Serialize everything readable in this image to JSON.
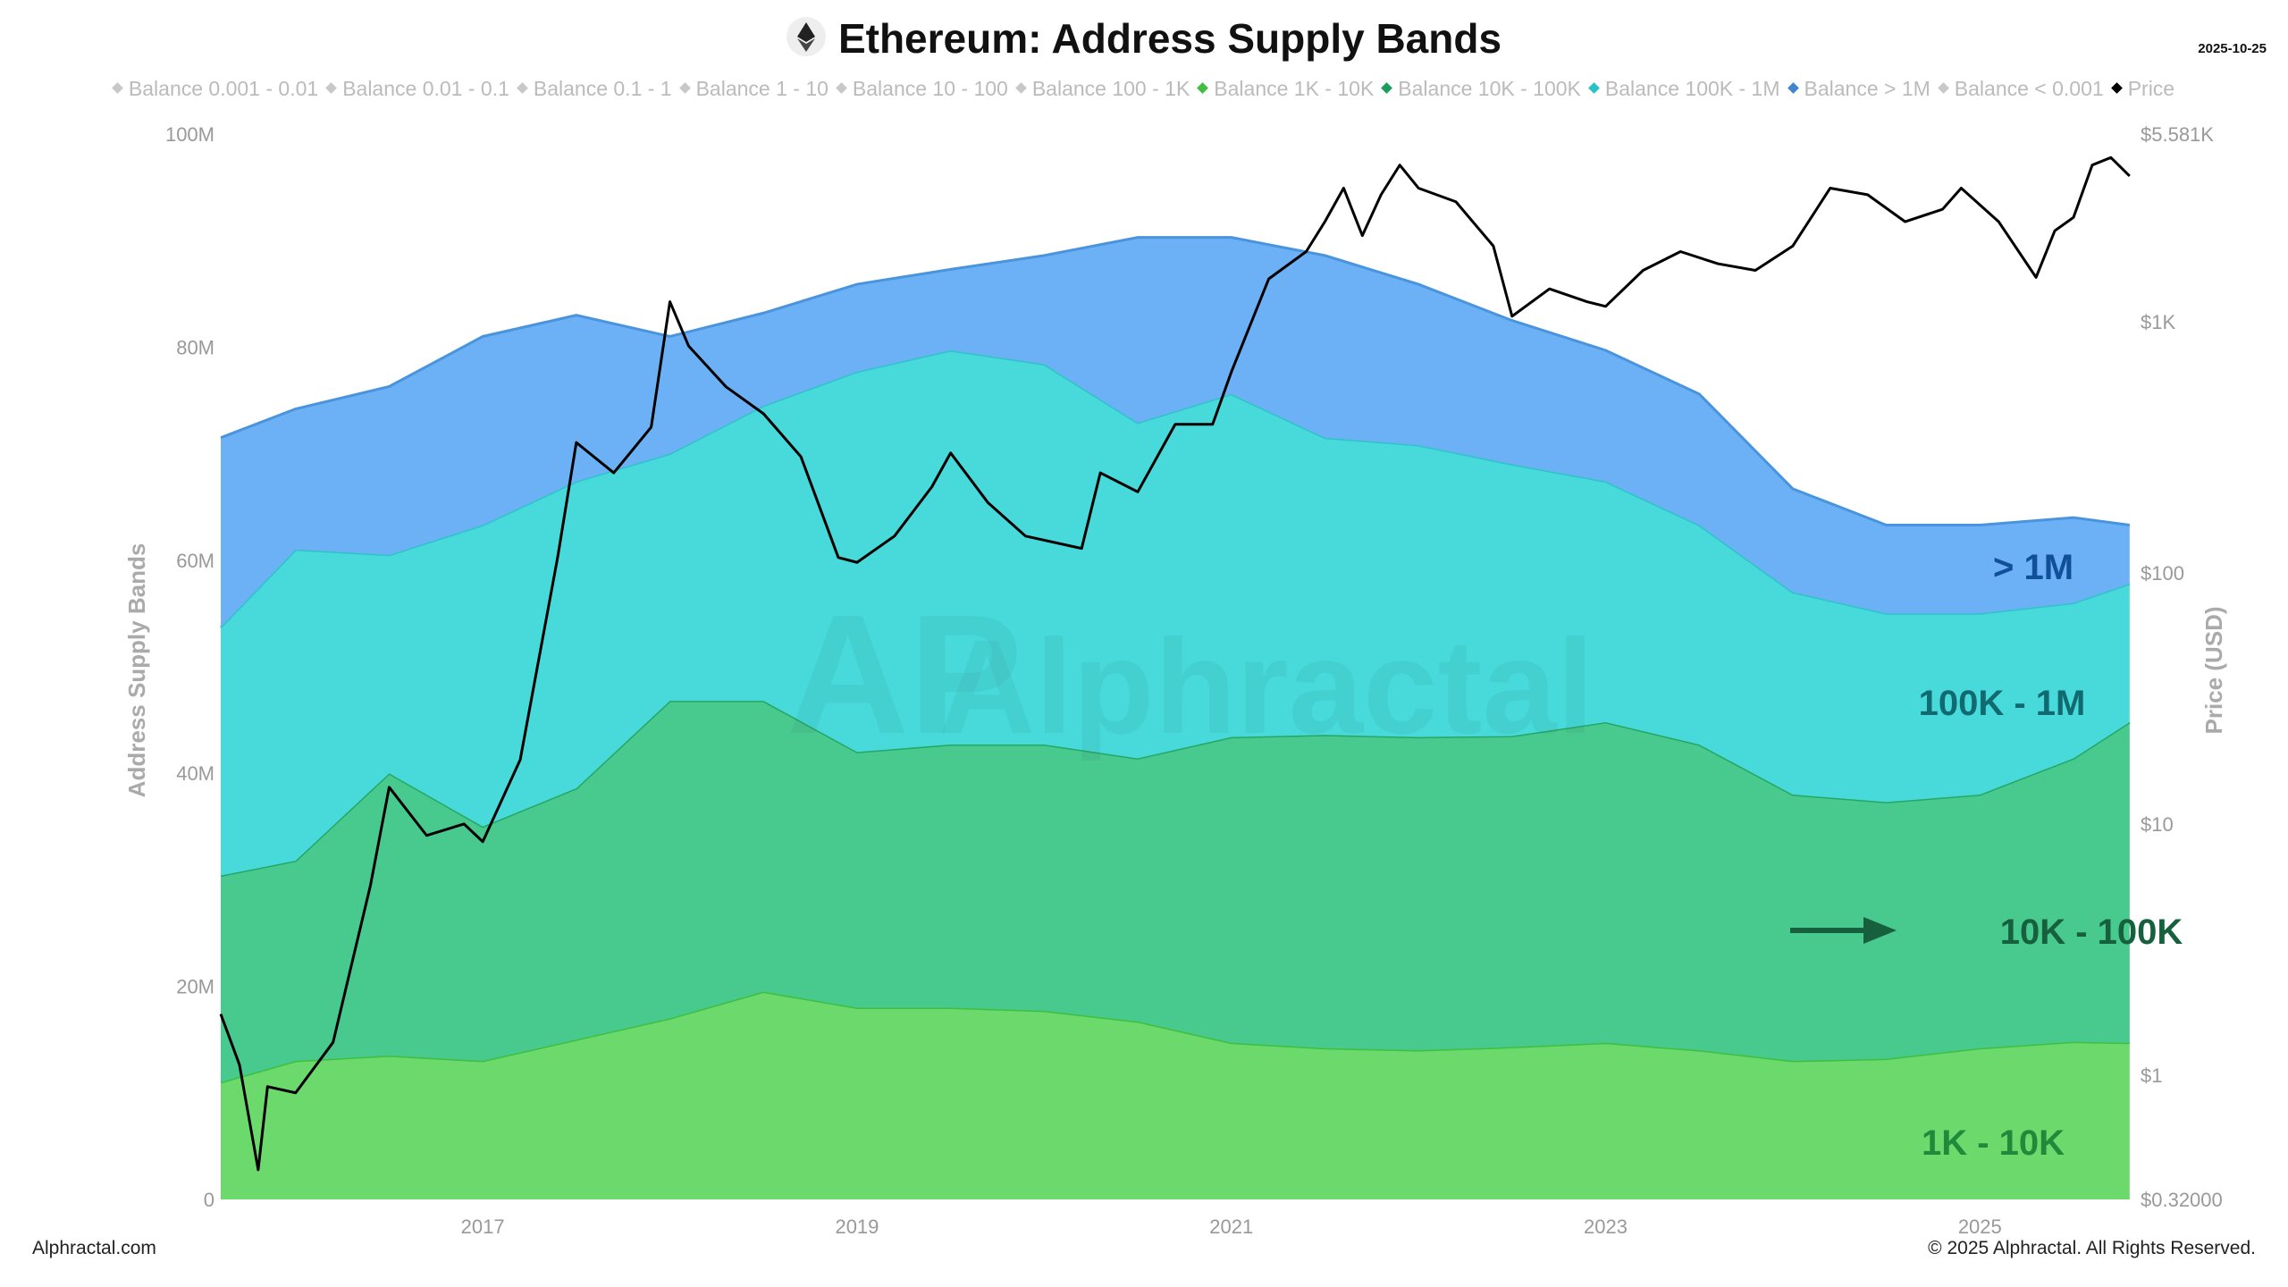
{
  "title": "Ethereum: Address Supply Bands",
  "date": "2025-10-25",
  "footer": {
    "left": "Alphractal.com",
    "right": "© 2025 Alphractal. All Rights Reserved."
  },
  "watermark": "Alphractal",
  "legend": [
    {
      "label": "Balance 0.001 - 0.01",
      "color": "#c8c8c8"
    },
    {
      "label": "Balance 0.01 - 0.1",
      "color": "#c8c8c8"
    },
    {
      "label": "Balance 0.1 - 1",
      "color": "#c8c8c8"
    },
    {
      "label": "Balance 1 - 10",
      "color": "#c8c8c8"
    },
    {
      "label": "Balance 10 - 100",
      "color": "#c8c8c8"
    },
    {
      "label": "Balance 100 - 1K",
      "color": "#c8c8c8"
    },
    {
      "label": "Balance 1K - 10K",
      "color": "#3fbf3f"
    },
    {
      "label": "Balance 10K - 100K",
      "color": "#1a9c5a"
    },
    {
      "label": "Balance 100K - 1M",
      "color": "#27c1c9"
    },
    {
      "label": "Balance > 1M",
      "color": "#3f86d0"
    },
    {
      "label": "Balance < 0.001",
      "color": "#c8c8c8"
    },
    {
      "label": "Price",
      "color": "#000000"
    }
  ],
  "chart_data": {
    "type": "area",
    "stacked": true,
    "title": "Ethereum: Address Supply Bands",
    "ylabel": "Address Supply Bands",
    "y2label": "Price (USD)",
    "ylim": [
      0,
      100000000
    ],
    "y2lim": [
      0.32,
      5581
    ],
    "y2scale": "log",
    "xlim": [
      2015.6,
      2025.82
    ],
    "xticks": [
      "2017",
      "2019",
      "2021",
      "2023",
      "2025"
    ],
    "yticks": [
      "0",
      "20M",
      "40M",
      "60M",
      "80M",
      "100M"
    ],
    "y2ticks": [
      "$0.32000",
      "$1",
      "$10",
      "$100",
      "$1K",
      "$5.581K"
    ],
    "grid": false,
    "legend_position": "top",
    "x": [
      2015.6,
      2016,
      2016.5,
      2017,
      2017.5,
      2018,
      2018.5,
      2019,
      2019.5,
      2020,
      2020.5,
      2021,
      2021.5,
      2022,
      2022.5,
      2023,
      2023.5,
      2024,
      2024.5,
      2025,
      2025.5,
      2025.8
    ],
    "series": [
      {
        "name": "Balance 1K - 10K",
        "color": "#6cd96c",
        "line": "#3fbf3f",
        "annotation": "1K - 10K",
        "values": [
          11,
          13,
          13.5,
          13,
          15,
          17,
          19.5,
          18,
          18,
          17.7,
          16.7,
          14.7,
          14.2,
          14,
          14.3,
          14.7,
          14,
          13,
          13.2,
          14.2,
          14.8,
          14.7
        ]
      },
      {
        "name": "Balance 10K - 100K",
        "color": "#48c98e",
        "line": "#26a765",
        "annotation": "10K - 100K",
        "values": [
          19.4,
          18.8,
          26.5,
          22,
          23.6,
          29.8,
          27.3,
          24,
          24.7,
          25,
          24.7,
          28.7,
          29.4,
          29.4,
          29.2,
          30.1,
          28.7,
          25,
          24.1,
          23.8,
          26.6,
          30.1
        ]
      },
      {
        "name": "Balance 100K - 1M",
        "color": "#48dada",
        "line": "#2fc3c8",
        "annotation": "100K - 1M",
        "values": [
          23.3,
          29.2,
          20.5,
          28.3,
          28.8,
          23.2,
          27.7,
          35.7,
          37,
          35.7,
          31.5,
          32.2,
          27.9,
          27.4,
          25.5,
          22.6,
          20.6,
          19,
          17.7,
          17,
          14.6,
          13
        ]
      },
      {
        "name": "Balance > 1M",
        "color": "#6cb1f5",
        "line": "#4a94de",
        "annotation": "> 1M",
        "values": [
          17.8,
          13.2,
          15.8,
          17.7,
          15.6,
          11,
          8.7,
          8.2,
          7.6,
          10.2,
          17.4,
          14.7,
          17.1,
          15.1,
          13.5,
          12.3,
          12.3,
          9.7,
          8.3,
          8.3,
          8,
          5.5
        ]
      }
    ],
    "values_unit": "M",
    "price": {
      "name": "Price",
      "x": [
        2015.6,
        2015.7,
        2015.8,
        2015.85,
        2016.0,
        2016.2,
        2016.4,
        2016.5,
        2016.7,
        2016.9,
        2017.0,
        2017.2,
        2017.4,
        2017.5,
        2017.7,
        2017.9,
        2018.0,
        2018.1,
        2018.3,
        2018.5,
        2018.7,
        2018.9,
        2019.0,
        2019.2,
        2019.4,
        2019.5,
        2019.7,
        2019.9,
        2020.2,
        2020.3,
        2020.5,
        2020.7,
        2020.9,
        2021.0,
        2021.2,
        2021.4,
        2021.5,
        2021.6,
        2021.7,
        2021.8,
        2021.9,
        2022.0,
        2022.2,
        2022.4,
        2022.5,
        2022.7,
        2022.9,
        2023.0,
        2023.2,
        2023.4,
        2023.6,
        2023.8,
        2024.0,
        2024.2,
        2024.4,
        2024.6,
        2024.8,
        2024.9,
        2025.1,
        2025.3,
        2025.4,
        2025.5,
        2025.6,
        2025.7,
        2025.8
      ],
      "values": [
        1.75,
        1.1,
        0.42,
        0.9,
        0.85,
        1.35,
        5.7,
        14,
        9,
        10,
        8.5,
        18,
        115,
        330,
        250,
        380,
        1200,
        800,
        550,
        430,
        290,
        115,
        110,
        140,
        220,
        300,
        190,
        140,
        125,
        250,
        210,
        390,
        390,
        630,
        1480,
        1900,
        2500,
        3400,
        2200,
        3200,
        4200,
        3400,
        3000,
        2000,
        1050,
        1350,
        1200,
        1150,
        1600,
        1900,
        1700,
        1600,
        2000,
        3400,
        3200,
        2500,
        2800,
        3400,
        2500,
        1500,
        2300,
        2600,
        4200,
        4500,
        3800
      ]
    }
  }
}
